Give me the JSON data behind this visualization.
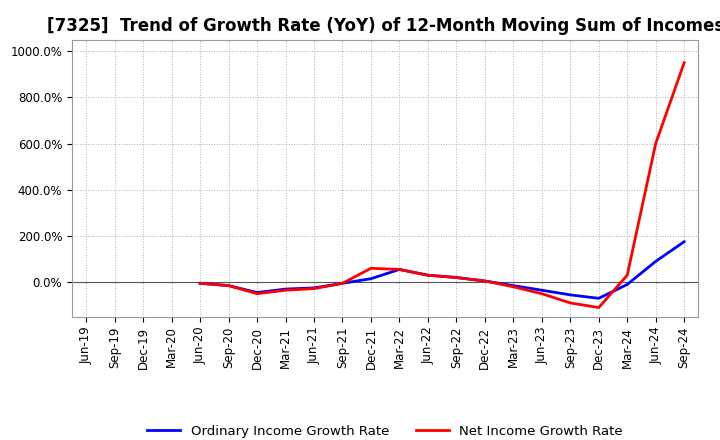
{
  "title": "[7325]  Trend of Growth Rate (YoY) of 12-Month Moving Sum of Incomes",
  "background_color": "#ffffff",
  "grid_color": "#b0b0b0",
  "ylim": [
    -150,
    1050
  ],
  "yticks": [
    0,
    200,
    400,
    600,
    800,
    1000
  ],
  "x_labels": [
    "Jun-19",
    "Sep-19",
    "Dec-19",
    "Mar-20",
    "Jun-20",
    "Sep-20",
    "Dec-20",
    "Mar-21",
    "Jun-21",
    "Sep-21",
    "Dec-21",
    "Mar-22",
    "Jun-22",
    "Sep-22",
    "Dec-22",
    "Mar-23",
    "Jun-23",
    "Sep-23",
    "Dec-23",
    "Mar-24",
    "Jun-24",
    "Sep-24"
  ],
  "ordinary_income": [
    null,
    null,
    null,
    null,
    -5,
    -15,
    -45,
    -30,
    -25,
    -5,
    15,
    55,
    30,
    20,
    5,
    -15,
    -35,
    -55,
    -70,
    -10,
    90,
    175
  ],
  "net_income": [
    null,
    null,
    null,
    null,
    -5,
    -15,
    -50,
    -35,
    -28,
    -5,
    60,
    55,
    30,
    20,
    5,
    -20,
    -50,
    -90,
    -110,
    30,
    600,
    950
  ],
  "ordinary_color": "#0000ff",
  "net_color": "#ff0000",
  "line_width": 2.0,
  "legend_labels": [
    "Ordinary Income Growth Rate",
    "Net Income Growth Rate"
  ],
  "title_fontsize": 12,
  "tick_fontsize": 8.5,
  "legend_fontsize": 9.5
}
